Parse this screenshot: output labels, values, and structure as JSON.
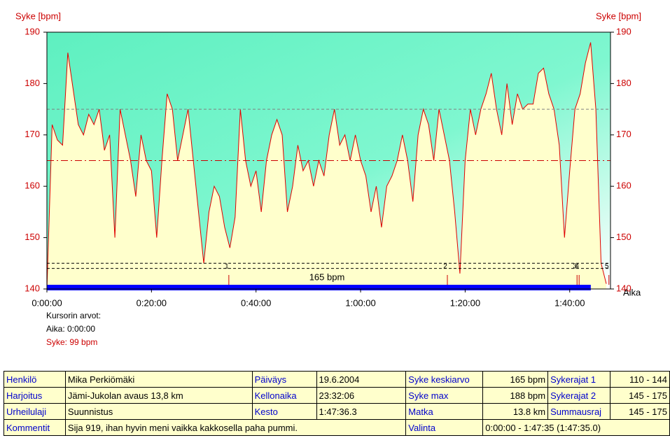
{
  "chart_data": {
    "type": "line",
    "y_label_left": "Syke [bpm]",
    "y_label_right": "Syke [bpm]",
    "x_label": "Aika",
    "x": [
      0,
      1,
      2,
      3,
      4,
      5,
      6,
      7,
      8,
      9,
      10,
      11,
      12,
      13,
      14,
      15,
      16,
      17,
      18,
      19,
      20,
      21,
      22,
      23,
      24,
      25,
      26,
      27,
      28,
      29,
      30,
      31,
      32,
      33,
      34,
      35,
      36,
      37,
      38,
      39,
      40,
      41,
      42,
      43,
      44,
      45,
      46,
      47,
      48,
      49,
      50,
      51,
      52,
      53,
      54,
      55,
      56,
      57,
      58,
      59,
      60,
      61,
      62,
      63,
      64,
      65,
      66,
      67,
      68,
      69,
      70,
      71,
      72,
      73,
      74,
      75,
      76,
      77,
      78,
      79,
      80,
      81,
      82,
      83,
      84,
      85,
      86,
      87,
      88,
      89,
      90,
      91,
      92,
      93,
      94,
      95,
      96,
      97,
      98,
      99,
      100,
      101,
      102,
      103,
      104,
      105,
      106,
      107
    ],
    "series": [
      {
        "name": "Syke",
        "color": "#e00000",
        "values": [
          140,
          172,
          169,
          168,
          186,
          179,
          172,
          170,
          174,
          172,
          175,
          167,
          170,
          150,
          175,
          170,
          165,
          158,
          170,
          165,
          163,
          150,
          165,
          178,
          175,
          165,
          170,
          175,
          165,
          155,
          145,
          155,
          160,
          158,
          152,
          148,
          154,
          175,
          165,
          160,
          163,
          155,
          165,
          170,
          173,
          170,
          155,
          160,
          168,
          163,
          165,
          160,
          165,
          162,
          170,
          175,
          168,
          170,
          165,
          170,
          165,
          162,
          155,
          160,
          152,
          160,
          162,
          165,
          170,
          165,
          157,
          170,
          175,
          172,
          165,
          175,
          170,
          165,
          155,
          143,
          165,
          175,
          170,
          175,
          178,
          182,
          175,
          170,
          180,
          172,
          178,
          175,
          176,
          176,
          182,
          183,
          178,
          175,
          168,
          150,
          163,
          175,
          178,
          184,
          188,
          175,
          145,
          141
        ]
      }
    ],
    "xlim": [
      0,
      107.8
    ],
    "ylim": [
      140,
      190
    ],
    "xticks": [
      {
        "value": 0,
        "label": "0:00:00"
      },
      {
        "value": 20,
        "label": "0:20:00"
      },
      {
        "value": 40,
        "label": "0:40:00"
      },
      {
        "value": 60,
        "label": "1:00:00"
      },
      {
        "value": 80,
        "label": "1:20:00"
      },
      {
        "value": 100,
        "label": "1:40:00"
      }
    ],
    "yticks": [
      140,
      150,
      160,
      170,
      180,
      190
    ],
    "hlines": [
      {
        "value": 175,
        "color": "#808080",
        "style": "dashed"
      },
      {
        "value": 165,
        "color": "#cc0000",
        "style": "dashdot"
      },
      {
        "value": 145,
        "color": "#000000",
        "style": "dashed"
      },
      {
        "value": 144,
        "color": "#000000",
        "style": "dashed"
      }
    ],
    "laps": [
      {
        "label": "1",
        "x": 34.8
      },
      {
        "label": "2",
        "x": 76.6
      },
      {
        "label": "3",
        "x": 101.4
      },
      {
        "label": "4",
        "x": 101.8
      },
      {
        "label": "5",
        "x": 107.5
      }
    ],
    "selection_label": "165 bpm",
    "cursor": {
      "title": "Kursorin arvot:",
      "time": "Aika: 0:00:00",
      "hr": "Syke: 99 bpm"
    }
  },
  "table": {
    "rows": [
      [
        "Henkilö",
        "Mika Perkiömäki",
        "Päiväys",
        "19.6.2004",
        "Syke keskiarvo",
        "165 bpm",
        "Sykerajat 1",
        "110 - 144"
      ],
      [
        "Harjoitus",
        "Jämi-Jukolan avaus 13,8 km",
        "Kellonaika",
        "23:32:06",
        "Syke max",
        "188 bpm",
        "Sykerajat 2",
        "145 - 175"
      ],
      [
        "Urheilulaji",
        "Suunnistus",
        "Kesto",
        "1:47:36.3",
        "Matka",
        "13.8 km",
        "Summausraj",
        "145 - 175"
      ],
      [
        "Kommentit",
        "Sija 919, ihan hyvin meni vaikka kakkosella paha pummi.",
        "Valinta",
        "0:00:00 - 1:47:35 (1:47:35.0)"
      ]
    ]
  }
}
